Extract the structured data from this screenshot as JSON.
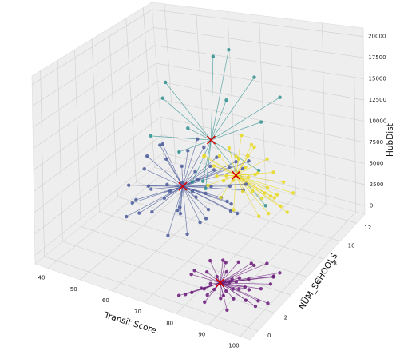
{
  "chart_data": {
    "type": "scatter",
    "dimensions": 3,
    "xlabel": "Transit Score",
    "ylabel": "NUM_SCHOOLS",
    "zlabel": "HubDist",
    "x_ticks": [
      "40",
      "50",
      "60",
      "70",
      "80",
      "90",
      "100"
    ],
    "y_ticks": [
      "0",
      "2",
      "4",
      "6",
      "8",
      "10",
      "12"
    ],
    "z_ticks": [
      "0",
      "2500",
      "5000",
      "7500",
      "10000",
      "12500",
      "15000",
      "17500",
      "20000"
    ],
    "xlim": [
      36,
      103
    ],
    "ylim": [
      -1,
      13
    ],
    "zlim": [
      -1000,
      21000
    ],
    "grid": true,
    "centroid_marker": "red x",
    "colors": {
      "cluster_purple": "#6a1b7a",
      "cluster_blue": "#4a5a9a",
      "cluster_teal": "#2e8f8f",
      "cluster_yellow": "#e8d820",
      "centroid": "#d40000",
      "pane": "#eeeeee",
      "grid": "#cfcfcf"
    },
    "clusters": [
      {
        "color_key": "cluster_purple",
        "centroid": [
          88,
          1,
          2000
        ],
        "points": [
          [
            78,
            0,
            0
          ],
          [
            80,
            0,
            400
          ],
          [
            82,
            0,
            900
          ],
          [
            84,
            1,
            0
          ],
          [
            85,
            1,
            1500
          ],
          [
            86,
            0,
            300
          ],
          [
            87,
            2,
            0
          ],
          [
            88,
            2,
            1200
          ],
          [
            89,
            1,
            600
          ],
          [
            90,
            3,
            0
          ],
          [
            91,
            2,
            800
          ],
          [
            92,
            1,
            1800
          ],
          [
            93,
            0,
            300
          ],
          [
            94,
            2,
            2400
          ],
          [
            95,
            3,
            500
          ],
          [
            96,
            1,
            1000
          ],
          [
            97,
            2,
            200
          ],
          [
            98,
            3,
            1500
          ],
          [
            99,
            1,
            700
          ],
          [
            100,
            2,
            300
          ],
          [
            80,
            1,
            2400
          ],
          [
            82,
            2,
            3000
          ],
          [
            84,
            3,
            2200
          ],
          [
            86,
            2,
            3600
          ],
          [
            88,
            3,
            2800
          ],
          [
            90,
            4,
            1800
          ],
          [
            92,
            3,
            3200
          ],
          [
            94,
            4,
            2600
          ],
          [
            96,
            4,
            1200
          ],
          [
            98,
            4,
            2000
          ],
          [
            85,
            0,
            1800
          ],
          [
            87,
            1,
            2600
          ],
          [
            89,
            0,
            2200
          ],
          [
            91,
            0,
            1400
          ],
          [
            93,
            1,
            2800
          ],
          [
            95,
            0,
            1900
          ],
          [
            97,
            1,
            2400
          ],
          [
            83,
            1,
            600
          ],
          [
            81,
            2,
            1500
          ],
          [
            79,
            1,
            1800
          ],
          [
            86,
            3,
            400
          ],
          [
            90,
            1,
            3600
          ],
          [
            94,
            1,
            3400
          ],
          [
            99,
            3,
            2600
          ]
        ]
      },
      {
        "color_key": "cluster_blue",
        "centroid": [
          62,
          6,
          6000
        ],
        "points": [
          [
            48,
            5,
            5000
          ],
          [
            50,
            6,
            6500
          ],
          [
            52,
            4,
            4200
          ],
          [
            54,
            7,
            7500
          ],
          [
            55,
            5,
            5500
          ],
          [
            56,
            8,
            6000
          ],
          [
            57,
            4,
            7000
          ],
          [
            58,
            6,
            4800
          ],
          [
            59,
            7,
            5200
          ],
          [
            60,
            5,
            6800
          ],
          [
            61,
            8,
            5000
          ],
          [
            62,
            4,
            6200
          ],
          [
            63,
            7,
            7200
          ],
          [
            64,
            5,
            4500
          ],
          [
            65,
            6,
            5800
          ],
          [
            66,
            8,
            7000
          ],
          [
            67,
            4,
            5000
          ],
          [
            68,
            7,
            6000
          ],
          [
            69,
            5,
            6500
          ],
          [
            70,
            6,
            4200
          ],
          [
            71,
            8,
            5600
          ],
          [
            72,
            5,
            7400
          ],
          [
            73,
            7,
            4800
          ],
          [
            74,
            6,
            6300
          ],
          [
            75,
            4,
            5500
          ],
          [
            76,
            8,
            6600
          ],
          [
            77,
            6,
            5000
          ],
          [
            78,
            7,
            7000
          ],
          [
            50,
            8,
            8000
          ],
          [
            53,
            3,
            3500
          ],
          [
            56,
            3,
            6000
          ],
          [
            60,
            9,
            8200
          ],
          [
            64,
            9,
            7500
          ],
          [
            68,
            9,
            6800
          ],
          [
            72,
            3,
            4000
          ],
          [
            76,
            3,
            6000
          ],
          [
            80,
            5,
            7200
          ],
          [
            52,
            7,
            9000
          ],
          [
            58,
            9,
            9000
          ],
          [
            66,
            3,
            3000
          ],
          [
            70,
            9,
            7800
          ],
          [
            74,
            9,
            8500
          ],
          [
            48,
            7,
            7000
          ],
          [
            79,
            6,
            5000
          ],
          [
            62,
            9,
            6000
          ],
          [
            57,
            3,
            4500
          ],
          [
            69,
            3,
            6500
          ],
          [
            75,
            8,
            8500
          ],
          [
            55,
            9,
            7000
          ],
          [
            61,
            3,
            5200
          ]
        ]
      },
      {
        "color_key": "cluster_teal",
        "centroid": [
          68,
          7,
          12000
        ],
        "points": [
          [
            48,
            9,
            15000
          ],
          [
            50,
            8,
            14000
          ],
          [
            55,
            9,
            10000
          ],
          [
            60,
            10,
            19500
          ],
          [
            70,
            11,
            17500
          ],
          [
            75,
            10,
            13000
          ],
          [
            80,
            8,
            9000
          ],
          [
            85,
            7,
            6000
          ],
          [
            72,
            5,
            8000
          ],
          [
            65,
            6,
            7000
          ],
          [
            58,
            7,
            9000
          ],
          [
            52,
            6,
            11000
          ],
          [
            78,
            11,
            16000
          ],
          [
            62,
            11,
            20000
          ],
          [
            67,
            9,
            15500
          ],
          [
            74,
            4,
            10000
          ]
        ]
      },
      {
        "color_key": "cluster_yellow",
        "centroid": [
          70,
          9,
          6000
        ],
        "points": [
          [
            60,
            9,
            7000
          ],
          [
            62,
            10,
            6500
          ],
          [
            64,
            9,
            5000
          ],
          [
            65,
            10,
            8000
          ],
          [
            66,
            8,
            7500
          ],
          [
            67,
            9,
            5500
          ],
          [
            68,
            10,
            7000
          ],
          [
            69,
            8,
            6000
          ],
          [
            70,
            9,
            8500
          ],
          [
            71,
            10,
            5000
          ],
          [
            72,
            8,
            6500
          ],
          [
            73,
            9,
            7500
          ],
          [
            74,
            10,
            6000
          ],
          [
            75,
            8,
            5500
          ],
          [
            76,
            9,
            7000
          ],
          [
            77,
            10,
            4500
          ],
          [
            78,
            8,
            6000
          ],
          [
            79,
            9,
            5000
          ],
          [
            80,
            10,
            4000
          ],
          [
            81,
            8,
            5500
          ],
          [
            82,
            9,
            4800
          ],
          [
            84,
            9,
            4000
          ],
          [
            85,
            10,
            5000
          ],
          [
            83,
            8,
            3800
          ],
          [
            86,
            9,
            3500
          ],
          [
            66,
            11,
            9000
          ],
          [
            70,
            11,
            8000
          ],
          [
            74,
            11,
            7000
          ],
          [
            63,
            8,
            8500
          ],
          [
            67,
            7,
            6000
          ],
          [
            71,
            7,
            5000
          ],
          [
            75,
            7,
            4000
          ],
          [
            78,
            10,
            3500
          ],
          [
            80,
            8,
            3000
          ],
          [
            72,
            10,
            9500
          ],
          [
            68,
            11,
            6500
          ],
          [
            76,
            11,
            5500
          ],
          [
            82,
            10,
            6000
          ]
        ]
      }
    ]
  }
}
